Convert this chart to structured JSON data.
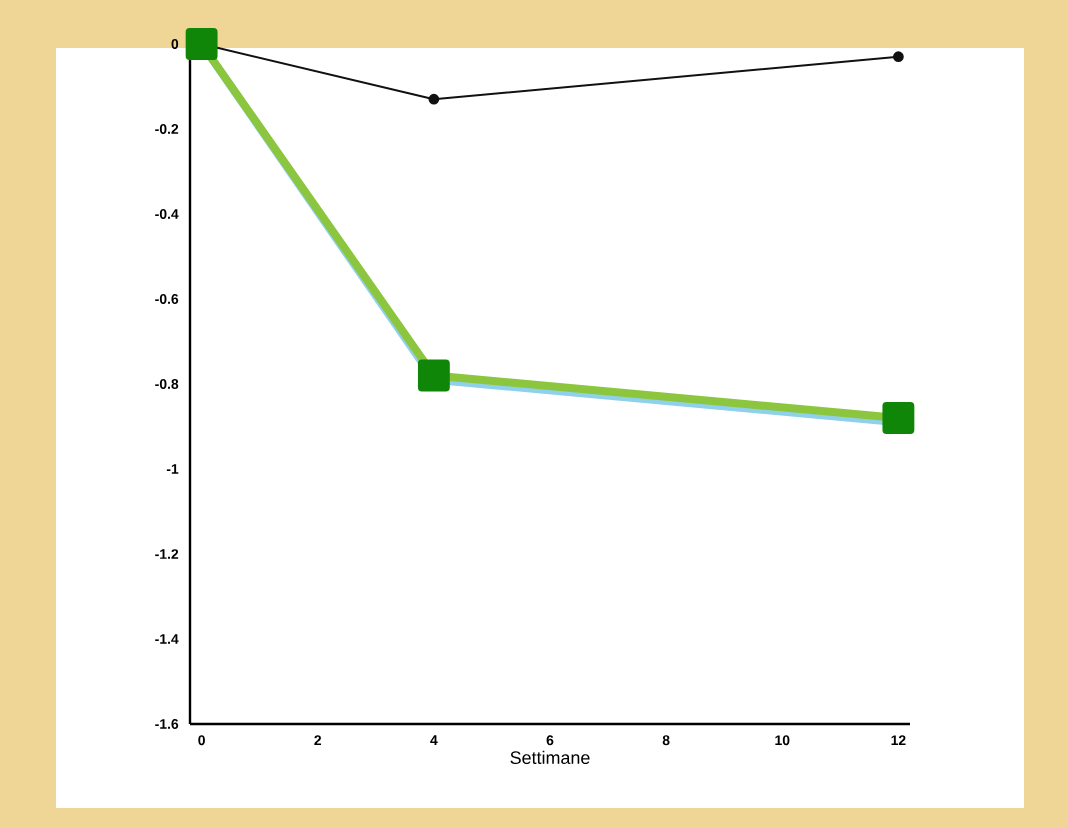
{
  "chart_data": {
    "type": "line",
    "xlabel": "Settimane",
    "x": [
      0,
      4,
      12
    ],
    "series": [
      {
        "color": "#111111",
        "values": [
          0,
          -0.13,
          -0.03
        ],
        "marker": "circle"
      },
      {
        "color": "#8fd0ea",
        "values": [
          0,
          -0.79,
          -0.89
        ],
        "marker": "none"
      },
      {
        "color": "#8cc63f",
        "values": [
          0,
          -0.78,
          -0.88
        ],
        "marker": "square"
      }
    ],
    "xlim": [
      -0.2,
      12.2
    ],
    "ylim": [
      -1.6,
      0
    ],
    "xticks": [
      0,
      2,
      4,
      6,
      8,
      10,
      12
    ],
    "yticks": [
      0,
      -0.2,
      -0.4,
      -0.6,
      -0.8,
      -1,
      -1.2,
      -1.4,
      -1.6
    ],
    "grid": false
  }
}
